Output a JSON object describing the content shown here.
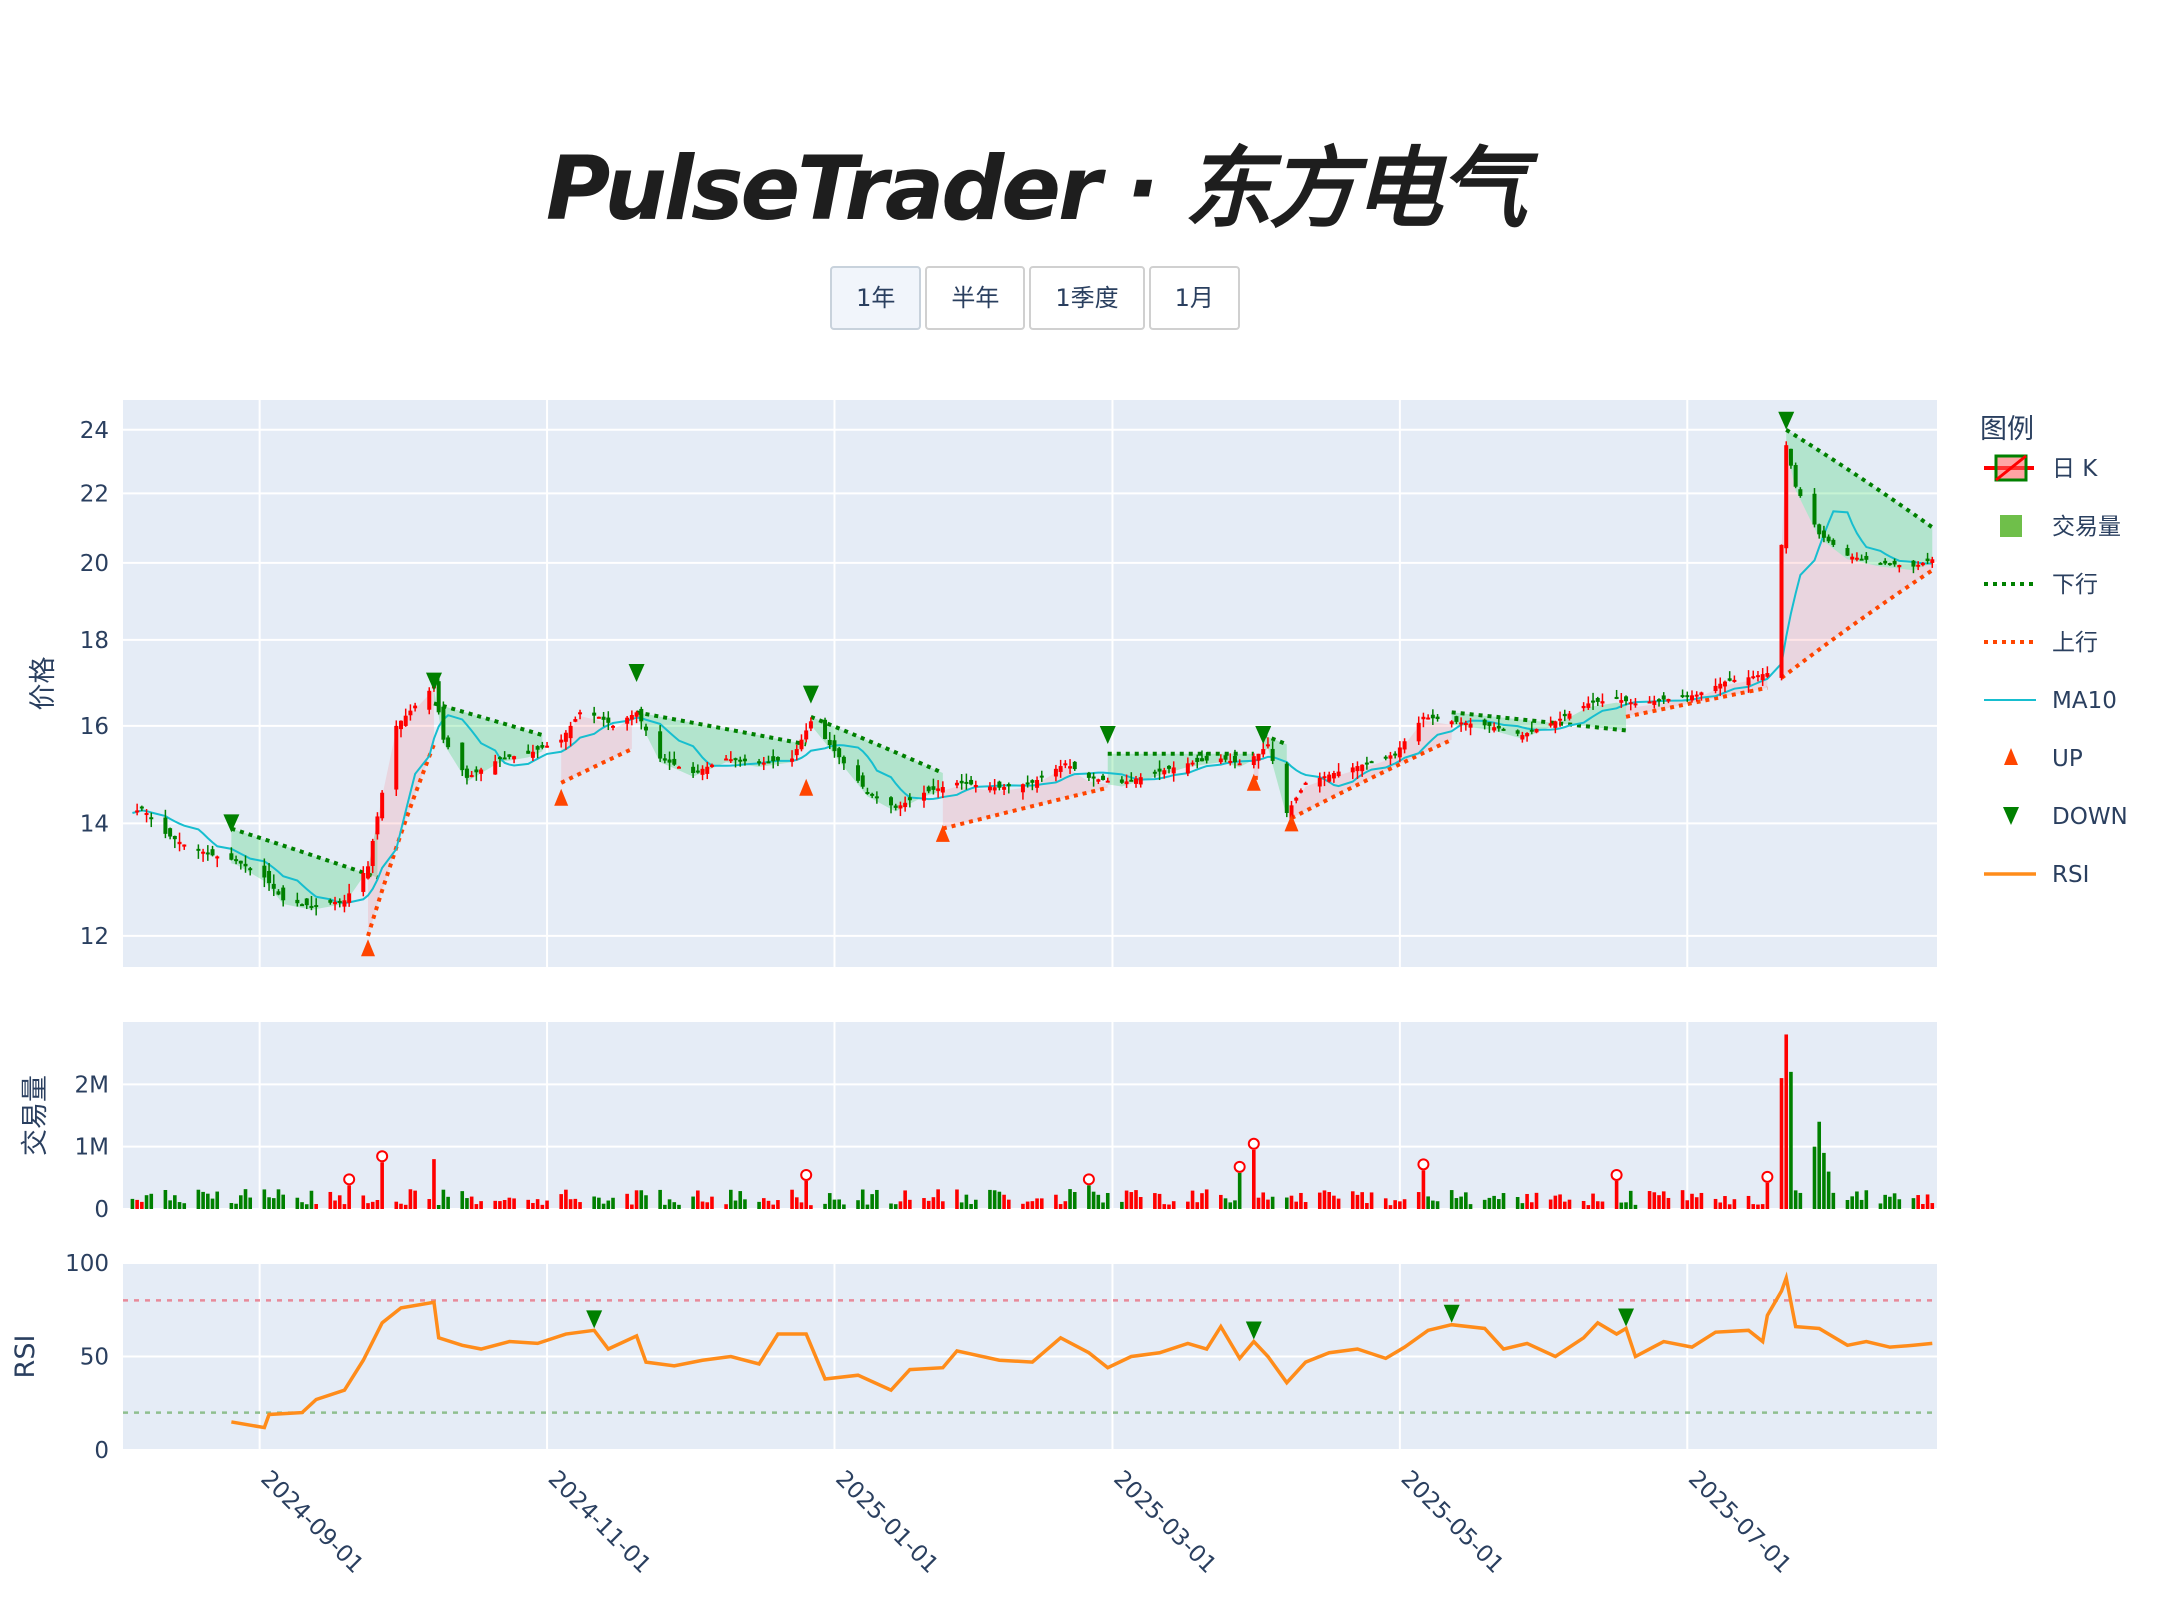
{
  "title": "PulseTrader · 东方电气",
  "range_buttons": [
    {
      "label": "1年",
      "active": true
    },
    {
      "label": "半年",
      "active": false
    },
    {
      "label": "1季度",
      "active": false
    },
    {
      "label": "1月",
      "active": false
    }
  ],
  "colors": {
    "up": "#ff0000",
    "down": "#008000",
    "upper_band": "#ff4500",
    "lower_band": "#008000",
    "ma": "#17becf",
    "rsi": "#ff8c1a",
    "overbought": "#e88a9a",
    "oversold": "#8fbf8f",
    "plot_bg": "#e5ecf6"
  },
  "chart_data": {
    "type": "candlestick",
    "x_range": [
      "2024-08-03",
      "2025-08-23"
    ],
    "x_ticks": [
      "2024-09-01",
      "2024-11-01",
      "2025-01-01",
      "2025-03-01",
      "2025-05-01",
      "2025-07-01"
    ],
    "price_axis": {
      "label": "价格",
      "scale": "log",
      "range": [
        11.5,
        25
      ],
      "ticks": [
        12,
        14,
        16,
        18,
        20,
        22,
        24
      ]
    },
    "volume_axis": {
      "label": "交易量",
      "range": [
        0,
        3000000
      ],
      "ticks": [
        0,
        1000000,
        2000000
      ],
      "tick_labels": [
        "0",
        "1M",
        "2M"
      ]
    },
    "rsi_axis": {
      "label": "RSI",
      "range": [
        0,
        100
      ],
      "ticks": [
        0,
        50,
        100
      ],
      "overbought": 80,
      "oversold": 20
    },
    "legend": {
      "title": "图例",
      "placement": "right",
      "items": [
        {
          "label": "日 K",
          "icon": "candle-icon"
        },
        {
          "label": "交易量",
          "icon": "volume-square-icon"
        },
        {
          "label": "下行",
          "icon": "dotted-line-green-icon"
        },
        {
          "label": "上行",
          "icon": "dotted-line-orange-icon"
        },
        {
          "label": "MA10",
          "icon": "line-cyan-icon"
        },
        {
          "label": "UP",
          "icon": "triangle-up-icon"
        },
        {
          "label": "DOWN",
          "icon": "triangle-down-icon"
        },
        {
          "label": "RSI",
          "icon": "line-orange-icon"
        }
      ]
    },
    "price_anchors": [
      [
        "2024-08-05",
        14.2
      ],
      [
        "2024-08-07",
        14.3
      ],
      [
        "2024-08-12",
        13.8
      ],
      [
        "2024-08-16",
        13.6
      ],
      [
        "2024-08-22",
        13.4
      ],
      [
        "2024-08-27",
        13.3
      ],
      [
        "2024-09-02",
        13.0
      ],
      [
        "2024-09-06",
        12.6
      ],
      [
        "2024-09-12",
        12.5
      ],
      [
        "2024-09-19",
        12.6
      ],
      [
        "2024-09-24",
        13.2
      ],
      [
        "2024-09-27",
        14.6
      ],
      [
        "2024-09-30",
        16.0
      ],
      [
        "2024-10-08",
        16.9
      ],
      [
        "2024-10-10",
        15.7
      ],
      [
        "2024-10-15",
        14.9
      ],
      [
        "2024-10-22",
        15.3
      ],
      [
        "2024-10-28",
        15.4
      ],
      [
        "2024-11-04",
        15.7
      ],
      [
        "2024-11-08",
        16.3
      ],
      [
        "2024-11-12",
        16.2
      ],
      [
        "2024-11-15",
        16.0
      ],
      [
        "2024-11-20",
        16.3
      ],
      [
        "2024-11-25",
        15.3
      ],
      [
        "2024-12-02",
        15.0
      ],
      [
        "2024-12-09",
        15.3
      ],
      [
        "2024-12-16",
        15.2
      ],
      [
        "2024-12-23",
        15.3
      ],
      [
        "2024-12-27",
        16.1
      ],
      [
        "2025-01-03",
        15.2
      ],
      [
        "2025-01-08",
        14.6
      ],
      [
        "2025-01-14",
        14.3
      ],
      [
        "2025-01-20",
        14.6
      ],
      [
        "2025-01-27",
        14.8
      ],
      [
        "2025-02-05",
        14.7
      ],
      [
        "2025-02-12",
        14.8
      ],
      [
        "2025-02-19",
        15.2
      ],
      [
        "2025-02-24",
        14.9
      ],
      [
        "2025-03-03",
        14.8
      ],
      [
        "2025-03-10",
        15.0
      ],
      [
        "2025-03-17",
        15.2
      ],
      [
        "2025-03-24",
        15.3
      ],
      [
        "2025-03-28",
        15.2
      ],
      [
        "2025-04-01",
        15.4
      ],
      [
        "2025-04-03",
        15.6
      ],
      [
        "2025-04-07",
        14.2
      ],
      [
        "2025-04-11",
        14.8
      ],
      [
        "2025-04-17",
        15.0
      ],
      [
        "2025-04-24",
        15.2
      ],
      [
        "2025-04-30",
        15.4
      ],
      [
        "2025-05-06",
        16.2
      ],
      [
        "2025-05-12",
        16.1
      ],
      [
        "2025-05-20",
        16.0
      ],
      [
        "2025-05-27",
        15.8
      ],
      [
        "2025-06-03",
        16.1
      ],
      [
        "2025-06-10",
        16.5
      ],
      [
        "2025-06-16",
        16.6
      ],
      [
        "2025-06-20",
        16.5
      ],
      [
        "2025-06-27",
        16.6
      ],
      [
        "2025-07-03",
        16.7
      ],
      [
        "2025-07-09",
        17.0
      ],
      [
        "2025-07-14",
        17.1
      ],
      [
        "2025-07-18",
        17.2
      ],
      [
        "2025-07-21",
        20.5
      ],
      [
        "2025-07-22",
        23.5
      ],
      [
        "2025-07-24",
        22.2
      ],
      [
        "2025-07-29",
        20.8
      ],
      [
        "2025-08-04",
        20.2
      ],
      [
        "2025-08-11",
        20.0
      ],
      [
        "2025-08-18",
        19.9
      ],
      [
        "2025-08-22",
        20.1
      ]
    ],
    "bands": {
      "lower_label": "下行",
      "upper_label": "上行",
      "lower_segments": [
        {
          "start": "2024-08-26",
          "end": "2024-09-26",
          "from": 13.9,
          "to": 13.0
        },
        {
          "start": "2024-10-08",
          "end": "2024-10-31",
          "from": 16.5,
          "to": 15.8
        },
        {
          "start": "2024-11-20",
          "end": "2024-12-26",
          "from": 16.3,
          "to": 15.6
        },
        {
          "start": "2024-12-27",
          "end": "2025-01-24",
          "from": 16.2,
          "to": 15.0
        },
        {
          "start": "2025-02-28",
          "end": "2025-03-31",
          "from": 15.4,
          "to": 15.4
        },
        {
          "start": "2025-04-02",
          "end": "2025-04-07",
          "from": 15.8,
          "to": 15.6
        },
        {
          "start": "2025-05-12",
          "end": "2025-06-18",
          "from": 16.3,
          "to": 15.9
        },
        {
          "start": "2025-07-22",
          "end": "2025-08-22",
          "from": 24.0,
          "to": 21.0
        }
      ],
      "upper_segments": [
        {
          "start": "2024-09-24",
          "end": "2024-10-08",
          "from": 12.0,
          "to": 15.6
        },
        {
          "start": "2024-11-04",
          "end": "2024-11-19",
          "from": 14.8,
          "to": 15.5
        },
        {
          "start": "2025-01-24",
          "end": "2025-02-28",
          "from": 13.9,
          "to": 14.7
        },
        {
          "start": "2025-03-31",
          "end": "2025-04-01",
          "from": 14.9,
          "to": 14.9
        },
        {
          "start": "2025-04-08",
          "end": "2025-05-12",
          "from": 14.1,
          "to": 15.7
        },
        {
          "start": "2025-06-18",
          "end": "2025-07-20",
          "from": 16.2,
          "to": 16.9
        },
        {
          "start": "2025-07-20",
          "end": "2025-08-22",
          "from": 17.0,
          "to": 19.8
        }
      ]
    },
    "ma_label": "MA10",
    "signals": {
      "up": [
        {
          "date": "2024-09-24",
          "price": 11.8
        },
        {
          "date": "2024-11-04",
          "price": 14.5
        },
        {
          "date": "2024-12-26",
          "price": 14.7
        },
        {
          "date": "2025-01-24",
          "price": 13.8
        },
        {
          "date": "2025-03-31",
          "price": 14.8
        },
        {
          "date": "2025-04-08",
          "price": 14.0
        }
      ],
      "down": [
        {
          "date": "2024-08-26",
          "price": 14.0
        },
        {
          "date": "2024-10-08",
          "price": 17.0
        },
        {
          "date": "2024-11-20",
          "price": 17.2
        },
        {
          "date": "2024-12-27",
          "price": 16.7
        },
        {
          "date": "2025-02-28",
          "price": 15.8
        },
        {
          "date": "2025-04-02",
          "price": 15.8
        },
        {
          "date": "2025-07-22",
          "price": 24.3
        }
      ]
    },
    "volume_spikes": [
      [
        "2024-09-20",
        380000
      ],
      [
        "2024-09-27",
        750000
      ],
      [
        "2024-10-08",
        800000
      ],
      [
        "2024-12-26",
        450000
      ],
      [
        "2025-02-24",
        380000
      ],
      [
        "2025-03-28",
        580000
      ],
      [
        "2025-03-31",
        950000
      ],
      [
        "2025-05-06",
        620000
      ],
      [
        "2025-06-16",
        450000
      ],
      [
        "2025-07-18",
        420000
      ],
      [
        "2025-07-21",
        2100000
      ],
      [
        "2025-07-22",
        2800000
      ],
      [
        "2025-07-23",
        2200000
      ],
      [
        "2025-07-28",
        1000000
      ],
      [
        "2025-07-29",
        1400000
      ],
      [
        "2025-07-30",
        900000
      ],
      [
        "2025-07-31",
        600000
      ]
    ],
    "volume_markers": [
      "2024-09-20",
      "2024-09-27",
      "2024-12-26",
      "2025-02-24",
      "2025-03-28",
      "2025-03-31",
      "2025-05-06",
      "2025-06-16",
      "2025-07-18"
    ],
    "rsi_anchors": [
      [
        "2024-08-26",
        15
      ],
      [
        "2024-09-02",
        12
      ],
      [
        "2024-09-03",
        19
      ],
      [
        "2024-09-10",
        20
      ],
      [
        "2024-09-13",
        27
      ],
      [
        "2024-09-19",
        32
      ],
      [
        "2024-09-23",
        48
      ],
      [
        "2024-09-27",
        68
      ],
      [
        "2024-10-01",
        76
      ],
      [
        "2024-10-08",
        79
      ],
      [
        "2024-10-09",
        60
      ],
      [
        "2024-10-14",
        56
      ],
      [
        "2024-10-18",
        54
      ],
      [
        "2024-10-24",
        58
      ],
      [
        "2024-10-30",
        57
      ],
      [
        "2024-11-05",
        62
      ],
      [
        "2024-11-11",
        64
      ],
      [
        "2024-11-14",
        54
      ],
      [
        "2024-11-20",
        61
      ],
      [
        "2024-11-22",
        47
      ],
      [
        "2024-11-28",
        45
      ],
      [
        "2024-12-04",
        48
      ],
      [
        "2024-12-10",
        50
      ],
      [
        "2024-12-16",
        46
      ],
      [
        "2024-12-20",
        62
      ],
      [
        "2024-12-26",
        62
      ],
      [
        "2024-12-30",
        38
      ],
      [
        "2025-01-06",
        40
      ],
      [
        "2025-01-13",
        32
      ],
      [
        "2025-01-17",
        43
      ],
      [
        "2025-01-24",
        44
      ],
      [
        "2025-01-27",
        53
      ],
      [
        "2025-02-05",
        48
      ],
      [
        "2025-02-12",
        47
      ],
      [
        "2025-02-18",
        60
      ],
      [
        "2025-02-24",
        52
      ],
      [
        "2025-02-28",
        44
      ],
      [
        "2025-03-05",
        50
      ],
      [
        "2025-03-11",
        52
      ],
      [
        "2025-03-17",
        57
      ],
      [
        "2025-03-21",
        54
      ],
      [
        "2025-03-24",
        66
      ],
      [
        "2025-03-28",
        49
      ],
      [
        "2025-03-31",
        58
      ],
      [
        "2025-04-03",
        50
      ],
      [
        "2025-04-07",
        36
      ],
      [
        "2025-04-11",
        47
      ],
      [
        "2025-04-16",
        52
      ],
      [
        "2025-04-22",
        54
      ],
      [
        "2025-04-28",
        49
      ],
      [
        "2025-05-02",
        55
      ],
      [
        "2025-05-07",
        64
      ],
      [
        "2025-05-12",
        67
      ],
      [
        "2025-05-19",
        65
      ],
      [
        "2025-05-23",
        54
      ],
      [
        "2025-05-28",
        57
      ],
      [
        "2025-06-03",
        50
      ],
      [
        "2025-06-09",
        60
      ],
      [
        "2025-06-12",
        68
      ],
      [
        "2025-06-16",
        62
      ],
      [
        "2025-06-18",
        65
      ],
      [
        "2025-06-20",
        50
      ],
      [
        "2025-06-26",
        58
      ],
      [
        "2025-07-02",
        55
      ],
      [
        "2025-07-07",
        63
      ],
      [
        "2025-07-14",
        64
      ],
      [
        "2025-07-17",
        58
      ],
      [
        "2025-07-18",
        72
      ],
      [
        "2025-07-21",
        85
      ],
      [
        "2025-07-22",
        92
      ],
      [
        "2025-07-24",
        66
      ],
      [
        "2025-07-29",
        65
      ],
      [
        "2025-08-04",
        56
      ],
      [
        "2025-08-08",
        58
      ],
      [
        "2025-08-13",
        55
      ],
      [
        "2025-08-18",
        56
      ],
      [
        "2025-08-22",
        57
      ]
    ],
    "rsi_signals": [
      "2024-11-11",
      "2025-03-31",
      "2025-05-12",
      "2025-06-18"
    ]
  }
}
